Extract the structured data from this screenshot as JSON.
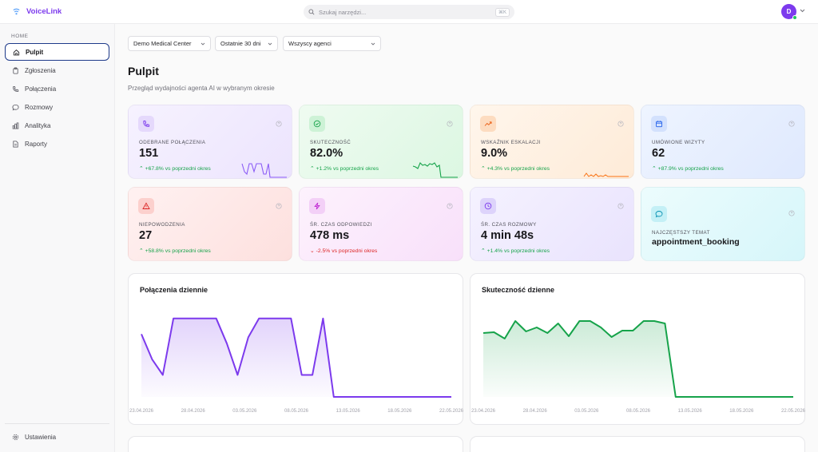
{
  "app": {
    "name": "VoiceLink",
    "user_initial": "D"
  },
  "search": {
    "placeholder": "Szukaj narzędzi...",
    "shortcut": "⌘K"
  },
  "sidebar": {
    "section": "HOME",
    "items": [
      {
        "label": "Pulpit",
        "icon": "home-icon",
        "active": true
      },
      {
        "label": "Zgłoszenia",
        "icon": "clipboard-icon"
      },
      {
        "label": "Połączenia",
        "icon": "phone-icon"
      },
      {
        "label": "Rozmowy",
        "icon": "chat-icon"
      },
      {
        "label": "Analityka",
        "icon": "bar-chart-icon"
      },
      {
        "label": "Raporty",
        "icon": "document-icon"
      }
    ],
    "settings_label": "Ustawienia"
  },
  "filters": {
    "center": "Demo Medical Center",
    "period": "Ostatnie 30 dni",
    "agents": "Wszyscy agenci"
  },
  "page": {
    "title": "Pulpit",
    "subtitle": "Przegląd wydajności agenta AI w wybranym okresie"
  },
  "kpis": [
    {
      "label": "ODEBRANE POŁĄCZENIA",
      "value": "151",
      "trend_value": "+67.8%",
      "trend_text": "vs poprzedni okres",
      "trend": "up",
      "icon": "phone-icon",
      "accent": "#7c3aed"
    },
    {
      "label": "SKUTECZNOŚĆ",
      "value": "82.0%",
      "trend_value": "+1.2%",
      "trend_text": "vs poprzedni okres",
      "trend": "up",
      "icon": "check-circle-icon",
      "accent": "#16a34a"
    },
    {
      "label": "WSKAŹNIK ESKALACJI",
      "value": "9.0%",
      "trend_value": "+4.3%",
      "trend_text": "vs poprzedni okres",
      "trend": "up",
      "icon": "trending-up-icon",
      "accent": "#ea580c"
    },
    {
      "label": "UMÓWIONE WIZYTY",
      "value": "62",
      "trend_value": "+87.9%",
      "trend_text": "vs poprzedni okres",
      "trend": "up",
      "icon": "calendar-icon",
      "accent": "#2563eb"
    },
    {
      "label": "NIEPOWODZENIA",
      "value": "27",
      "trend_value": "+58.8%",
      "trend_text": "vs poprzedni okres",
      "trend": "up",
      "icon": "alert-triangle-icon",
      "accent": "#dc2626"
    },
    {
      "label": "ŚR. CZAS ODPOWIEDZI",
      "value": "478 ms",
      "trend_value": "-2.5%",
      "trend_text": "vs poprzedni okres",
      "trend": "down",
      "icon": "lightning-icon",
      "accent": "#c026d3"
    },
    {
      "label": "ŚR. CZAS ROZMOWY",
      "value": "4 min 48s",
      "trend_value": "+1.4%",
      "trend_text": "vs poprzedni okres",
      "trend": "up",
      "icon": "clock-icon",
      "accent": "#7c3aed"
    },
    {
      "label": "NAJCZĘSTSZY TEMAT",
      "value": "appointment_booking",
      "icon": "message-icon",
      "accent": "#0891b2"
    }
  ],
  "chart_data": [
    {
      "type": "area",
      "title": "Połączenia dziennie",
      "x_ticks": [
        "23.04.2026",
        "28.04.2026",
        "03.05.2026",
        "08.05.2026",
        "13.05.2026",
        "18.05.2026",
        "22.05.2026"
      ],
      "values": [
        10,
        6,
        3.5,
        12.5,
        12.5,
        12.5,
        12.5,
        12.5,
        8.5,
        3.5,
        9.5,
        12.5,
        12.5,
        12.5,
        12.5,
        3.5,
        3.5,
        12.5,
        0,
        0,
        0,
        0,
        0,
        0,
        0,
        0,
        0,
        0,
        0,
        0
      ],
      "ylim": [
        0,
        14
      ],
      "color": "#7c3aed",
      "grid": false
    },
    {
      "type": "area",
      "title": "Skuteczność dzienne",
      "x_ticks": [
        "23.04.2026",
        "28.04.2026",
        "03.05.2026",
        "08.05.2026",
        "13.05.2026",
        "18.05.2026",
        "22.05.2026"
      ],
      "values": [
        80,
        81,
        73,
        95,
        82,
        87,
        80,
        92,
        76,
        95,
        95,
        87,
        75,
        83,
        83,
        95,
        95,
        92,
        0,
        0,
        0,
        0,
        0,
        0,
        0,
        0,
        0,
        0,
        0,
        0
      ],
      "ylim": [
        0,
        110
      ],
      "color": "#16a34a",
      "grid": false
    }
  ]
}
